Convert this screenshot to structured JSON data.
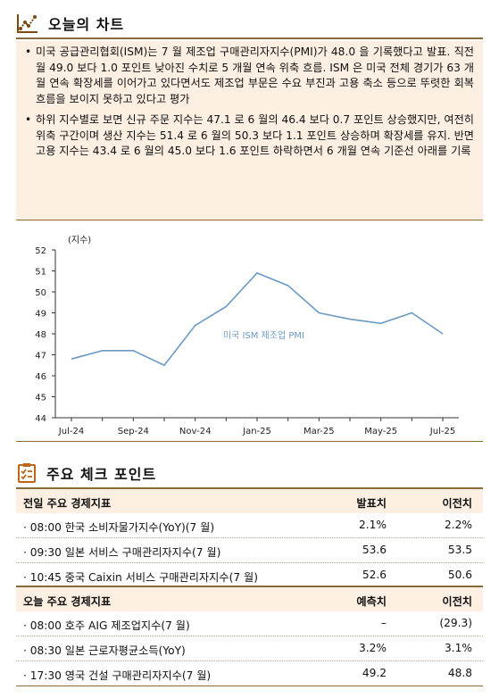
{
  "chart_section": {
    "icon": "chart-line-icon",
    "title": "오늘의 차트"
  },
  "summary": [
    "미국 공급관리협회(ISM)는 7 월 제조업 구매관리자지수(PMI)가 48.0 을 기록했다고 발표. 직전월 49.0 보다 1.0 포인트 낮아진 수치로 5 개월 연속 위축 흐름. ISM 은 미국 전체 경기가 63 개월 연속 확장세를 이어가고 있다면서도 제조업 부문은 수요 부진과 고용 축소 등으로 뚜렷한 회복 흐름을 보이지 못하고 있다고 평가",
    "하위 지수별로 보면 신규 주문 지수는 47.1 로 6 월의 46.4 보다 0.7 포인트 상승했지만, 여전히 위축 구간이며 생산 지수는 51.4 로 6 월의 50.3 보다 1.1 포인트 상승하며 확장세를 유지. 반면 고용 지수는 43.4 로 6 월의 45.0 보다 1.6 포인트 하락하면서 6 개월 연속 기준선 아래를 기록"
  ],
  "chart_data": {
    "type": "line",
    "ylabel": "(지수)",
    "ylim": [
      44,
      52
    ],
    "yticks": [
      44,
      45,
      46,
      47,
      48,
      49,
      50,
      51,
      52
    ],
    "x": [
      "Jul-24",
      "Aug-24",
      "Sep-24",
      "Oct-24",
      "Nov-24",
      "Dec-24",
      "Jan-25",
      "Feb-25",
      "Mar-25",
      "Apr-25",
      "May-25",
      "Jun-25",
      "Jul-25"
    ],
    "xticks": [
      "Jul-24",
      "Sep-24",
      "Nov-24",
      "Jan-25",
      "Mar-25",
      "May-25",
      "Jul-25"
    ],
    "series": [
      {
        "name": "미국 ISM 제조업 PMI",
        "color": "#6b9ac4",
        "values": [
          46.8,
          47.2,
          47.2,
          46.5,
          48.4,
          49.3,
          50.9,
          50.3,
          49.0,
          48.7,
          48.5,
          49.0,
          48.0
        ]
      }
    ],
    "grid": false
  },
  "check_section": {
    "icon": "checklist-icon",
    "title": "주요 체크 포인트"
  },
  "prev_table": {
    "header": {
      "label": "전일 주요 경제지표",
      "col2": "발표치",
      "col3": "이전치"
    },
    "rows": [
      {
        "name": "· 08:00 한국 소비자물가지수(YoY)(7 월)",
        "v1": "2.1%",
        "v2": "2.2%"
      },
      {
        "name": "· 09:30 일본 서비스 구매관리자지수(7 월)",
        "v1": "53.6",
        "v2": "53.5"
      },
      {
        "name": "· 10:45 중국 Caixin 서비스 구매관리자지수(7 월)",
        "v1": "52.6",
        "v2": "50.6"
      }
    ]
  },
  "today_table": {
    "header": {
      "label": "오늘 주요 경제지표",
      "col2": "예측치",
      "col3": "이전치"
    },
    "rows": [
      {
        "name": "· 08:00 호주 AIG 제조업지수(7 월)",
        "v1": "–",
        "v2": "(29.3)"
      },
      {
        "name": "· 08:30 일본 근로자평균소득(YoY)",
        "v1": "3.2%",
        "v2": "3.1%"
      },
      {
        "name": "· 17:30 영국 건설 구매관리자지수(7 월)",
        "v1": "49.2",
        "v2": "48.8"
      }
    ]
  }
}
